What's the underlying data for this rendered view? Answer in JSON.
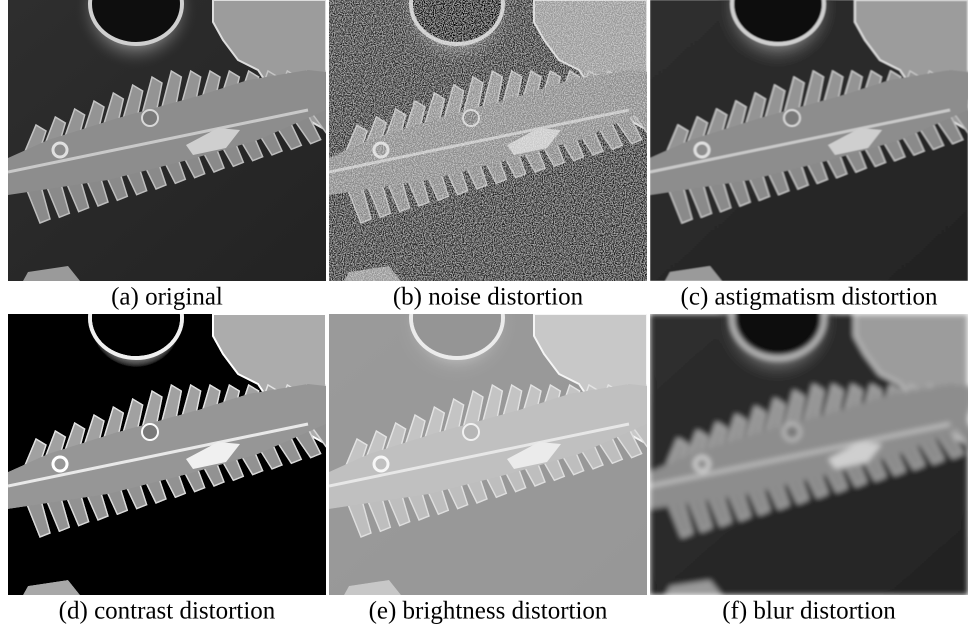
{
  "panels": [
    {
      "caption": "(a) original"
    },
    {
      "caption": "(b) noise distortion"
    },
    {
      "caption": "(c) astigmatism distortion"
    },
    {
      "caption": "(d) contrast distortion"
    },
    {
      "caption": "(e) brightness distortion"
    },
    {
      "caption": "(f) blur distortion"
    }
  ]
}
